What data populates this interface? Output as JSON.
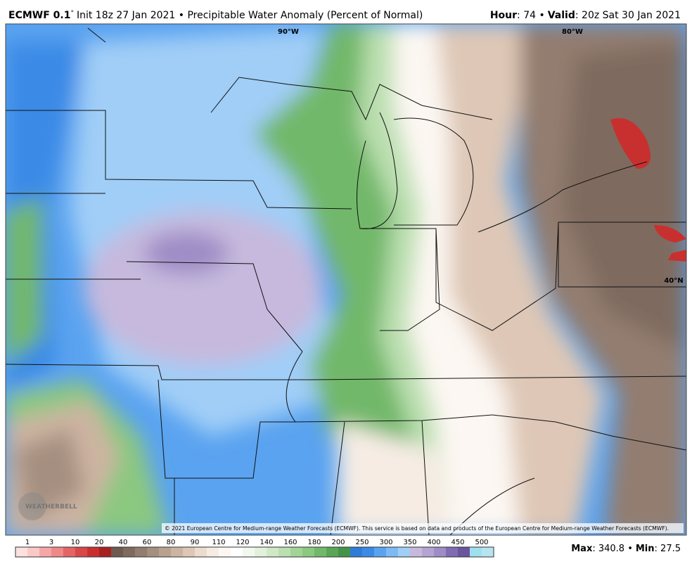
{
  "header": {
    "model": "ECMWF 0.1",
    "degree": "°",
    "description": "Init 18z 27 Jan 2021 • Precipitable Water Anomaly (Percent of Normal)",
    "hour_label": "Hour",
    "hour_value": ": 74 •",
    "valid_label": "Valid",
    "valid_value": ": 20z Sat 30 Jan 2021"
  },
  "map": {
    "labels": [
      "90°W",
      "80°W",
      "40°N"
    ],
    "copyright": "© 2021 European Centre for Medium-range Weather Forecasts (ECMWF). This service is based on data and products of the European Centre for Medium-range Weather Forecasts (ECMWF).",
    "logo": "WEATHERBELL"
  },
  "colorbar": {
    "labels": [
      "1",
      "3",
      "10",
      "20",
      "40",
      "60",
      "80",
      "90",
      "110",
      "120",
      "140",
      "160",
      "180",
      "200",
      "250",
      "300",
      "350",
      "400",
      "450",
      "500"
    ],
    "colors": [
      "#fde0e0",
      "#fbc8c8",
      "#f6a6a6",
      "#f08888",
      "#e46565",
      "#d84848",
      "#c83030",
      "#a82020",
      "#6e5a50",
      "#7f6a5e",
      "#937d6f",
      "#a58f80",
      "#b9a190",
      "#cdb4a2",
      "#dec7b6",
      "#ecdccd",
      "#f6ece4",
      "#fcf7f2",
      "#ffffff",
      "#f3f8ef",
      "#e3f1dc",
      "#d0e8c6",
      "#bbdfb0",
      "#a3d497",
      "#8bc880",
      "#72b86a",
      "#5aa656",
      "#459348",
      "#2f7bd8",
      "#3a8ae6",
      "#5aa3f0",
      "#7dbaf5",
      "#a0cef7",
      "#c6b9dd",
      "#b3a4d3",
      "#9d8cc6",
      "#7f6cb2",
      "#6b559e",
      "#9ee0ee",
      "#b8e4f2"
    ]
  },
  "footer": {
    "max_label": "Max",
    "max_value": ": 340.8 •",
    "min_label": "Min",
    "min_value": ": 27.5"
  }
}
